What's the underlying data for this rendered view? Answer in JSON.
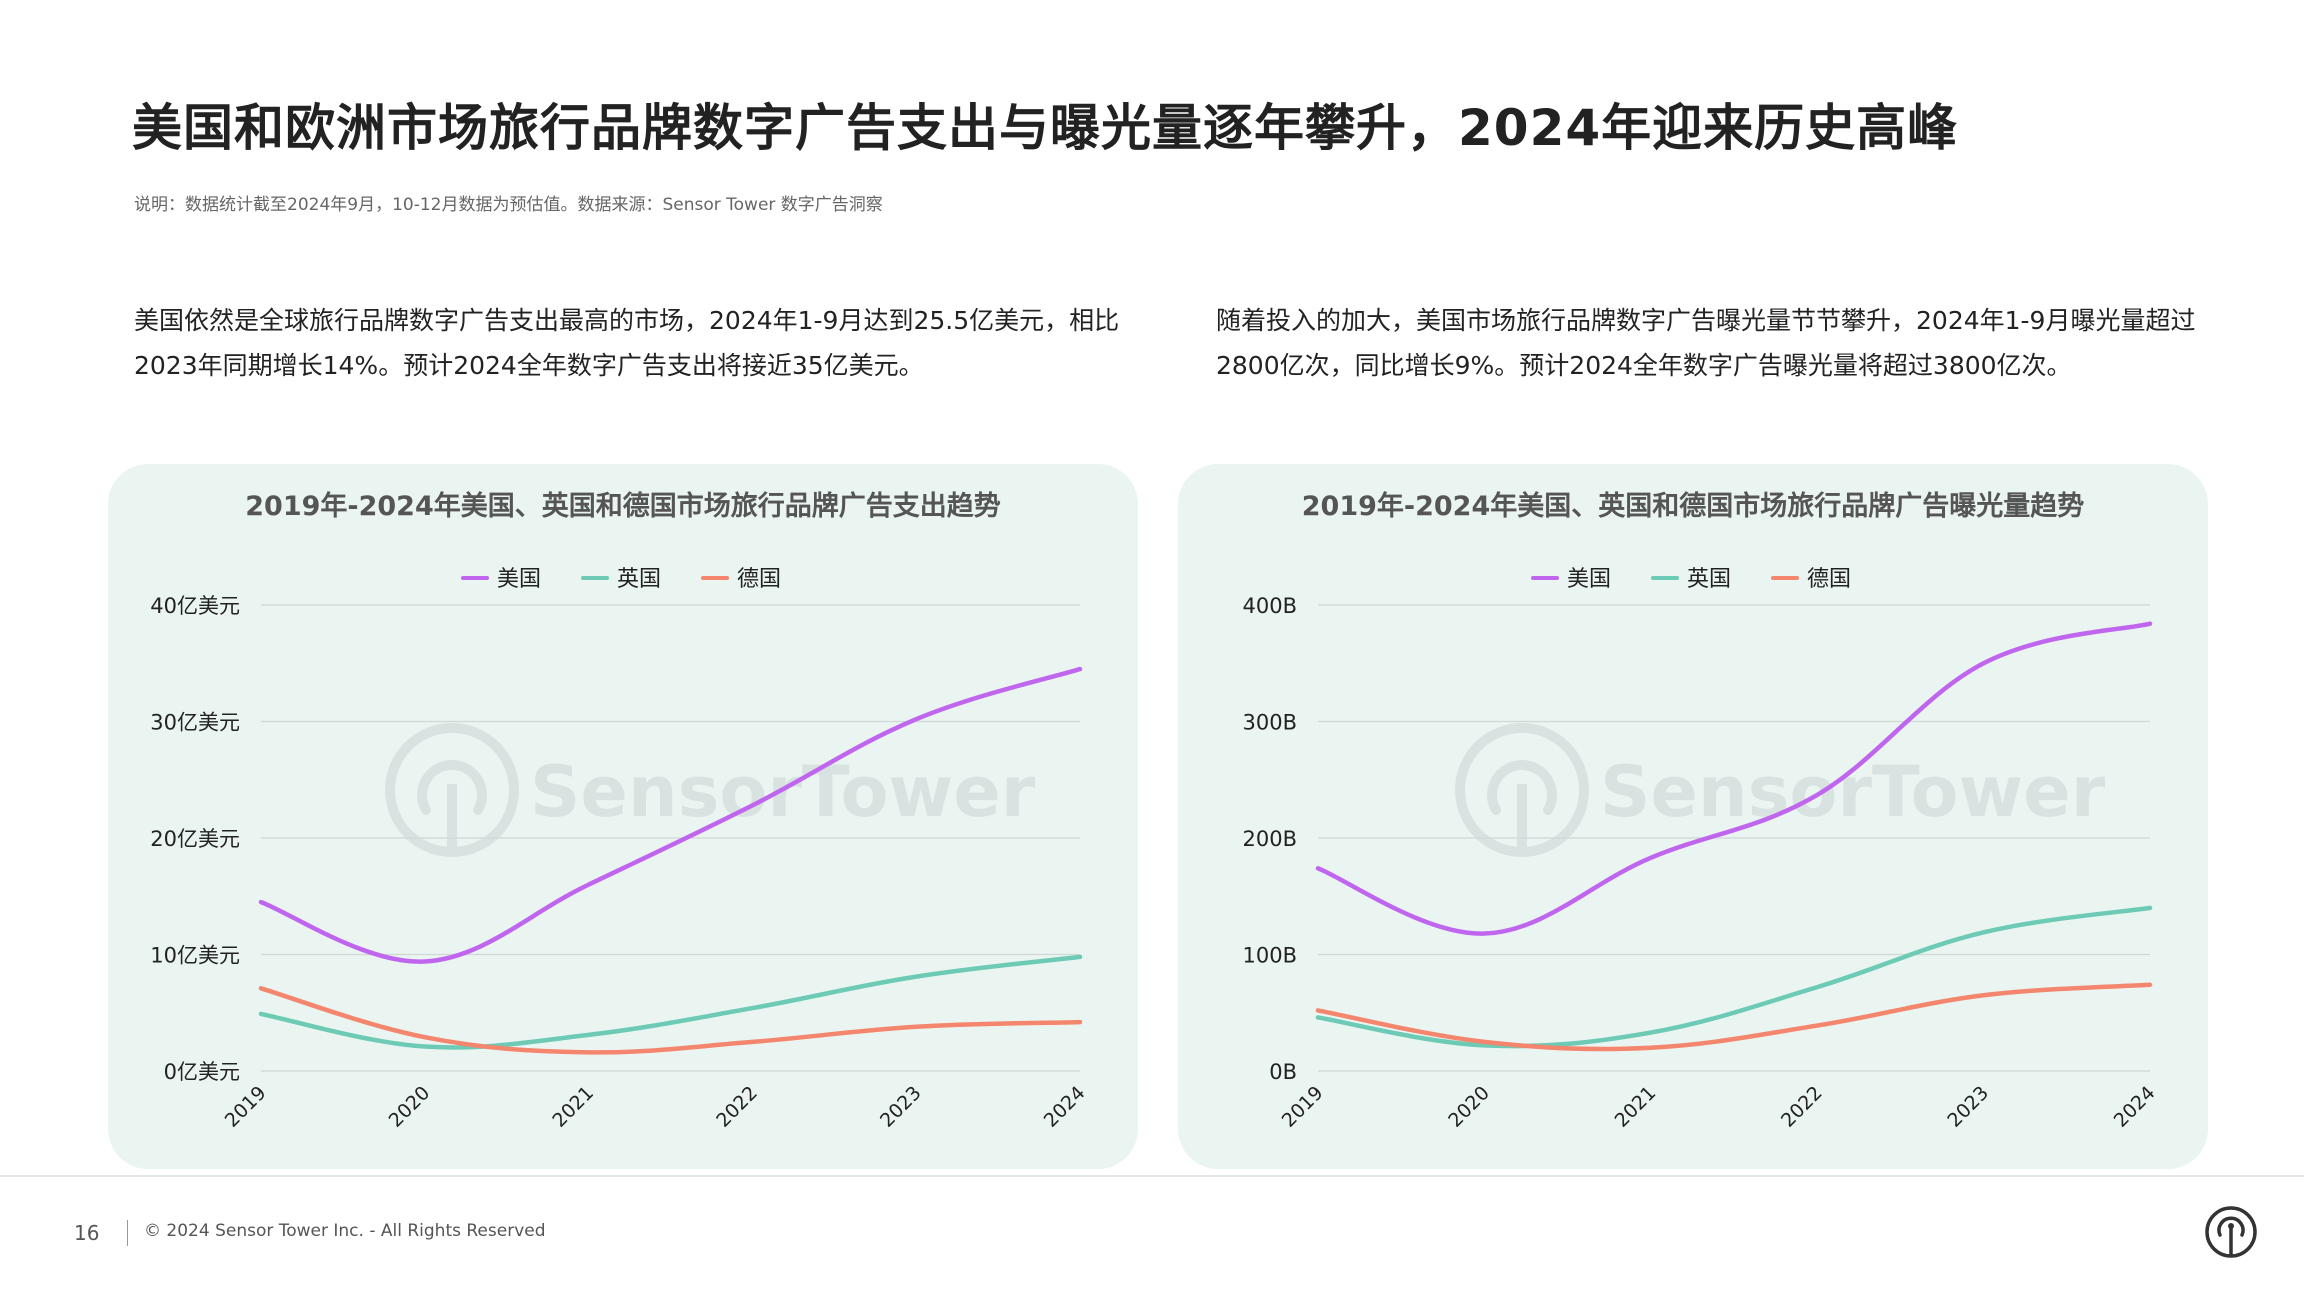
{
  "page": {
    "title": "美国和欧洲市场旅行品牌数字广告支出与曝光量逐年攀升，2024年迎来历史高峰",
    "note": "说明：数据统计截至2024年9月，10-12月数据为预估值。数据来源：Sensor Tower 数字广告洞察",
    "left_paragraph": "美国依然是全球旅行品牌数字广告支出最高的市场，2024年1-9月达到25.5亿美元，相比2023年同期增长14%。预计2024全年数字广告支出将接近35亿美元。",
    "right_paragraph": "随着投入的加大，美国市场旅行品牌数字广告曝光量节节攀升，2024年1-9月曝光量超过2800亿次，同比增长9%。预计2024全年数字广告曝光量将超过3800亿次。",
    "watermark": "SensorTower",
    "page_number": "16",
    "copyright": "© 2024 Sensor Tower Inc. - All Rights Reserved",
    "logo_icon": "sensor-tower-logo-icon"
  },
  "chart_data": [
    {
      "type": "line",
      "title": "2019年-2024年美国、英国和德国市场旅行品牌广告支出趋势",
      "x": [
        "2019",
        "2020",
        "2021",
        "2022",
        "2023",
        "2024"
      ],
      "ylim": [
        0,
        40
      ],
      "yticks": [
        0,
        10,
        20,
        30,
        40
      ],
      "ytick_labels": [
        "0亿美元",
        "10亿美元",
        "20亿美元",
        "30亿美元",
        "40亿美元"
      ],
      "grid": true,
      "legend_position": "top-center",
      "series": [
        {
          "name": "美国",
          "color": "#c066ee",
          "values": [
            14.5,
            9.4,
            16.0,
            22.8,
            30.2,
            34.5
          ]
        },
        {
          "name": "英国",
          "color": "#6dcab5",
          "values": [
            4.9,
            2.1,
            3.1,
            5.4,
            8.1,
            9.8
          ]
        },
        {
          "name": "德国",
          "color": "#f4866e",
          "values": [
            7.1,
            2.9,
            1.6,
            2.5,
            3.8,
            4.2
          ]
        }
      ]
    },
    {
      "type": "line",
      "title": "2019年-2024年美国、英国和德国市场旅行品牌广告曝光量趋势",
      "x": [
        "2019",
        "2020",
        "2021",
        "2022",
        "2023",
        "2024"
      ],
      "ylim": [
        0,
        400
      ],
      "yticks": [
        0,
        100,
        200,
        300,
        400
      ],
      "ytick_labels": [
        "0B",
        "100B",
        "200B",
        "300B",
        "400B"
      ],
      "grid": true,
      "legend_position": "top-center",
      "series": [
        {
          "name": "美国",
          "color": "#c066ee",
          "values": [
            174,
            118,
            183,
            237,
            350,
            384
          ]
        },
        {
          "name": "英国",
          "color": "#6dcab5",
          "values": [
            46,
            22,
            33,
            72,
            119,
            140
          ]
        },
        {
          "name": "德国",
          "color": "#f4866e",
          "values": [
            52,
            25,
            20,
            39,
            65,
            74
          ]
        }
      ]
    }
  ]
}
